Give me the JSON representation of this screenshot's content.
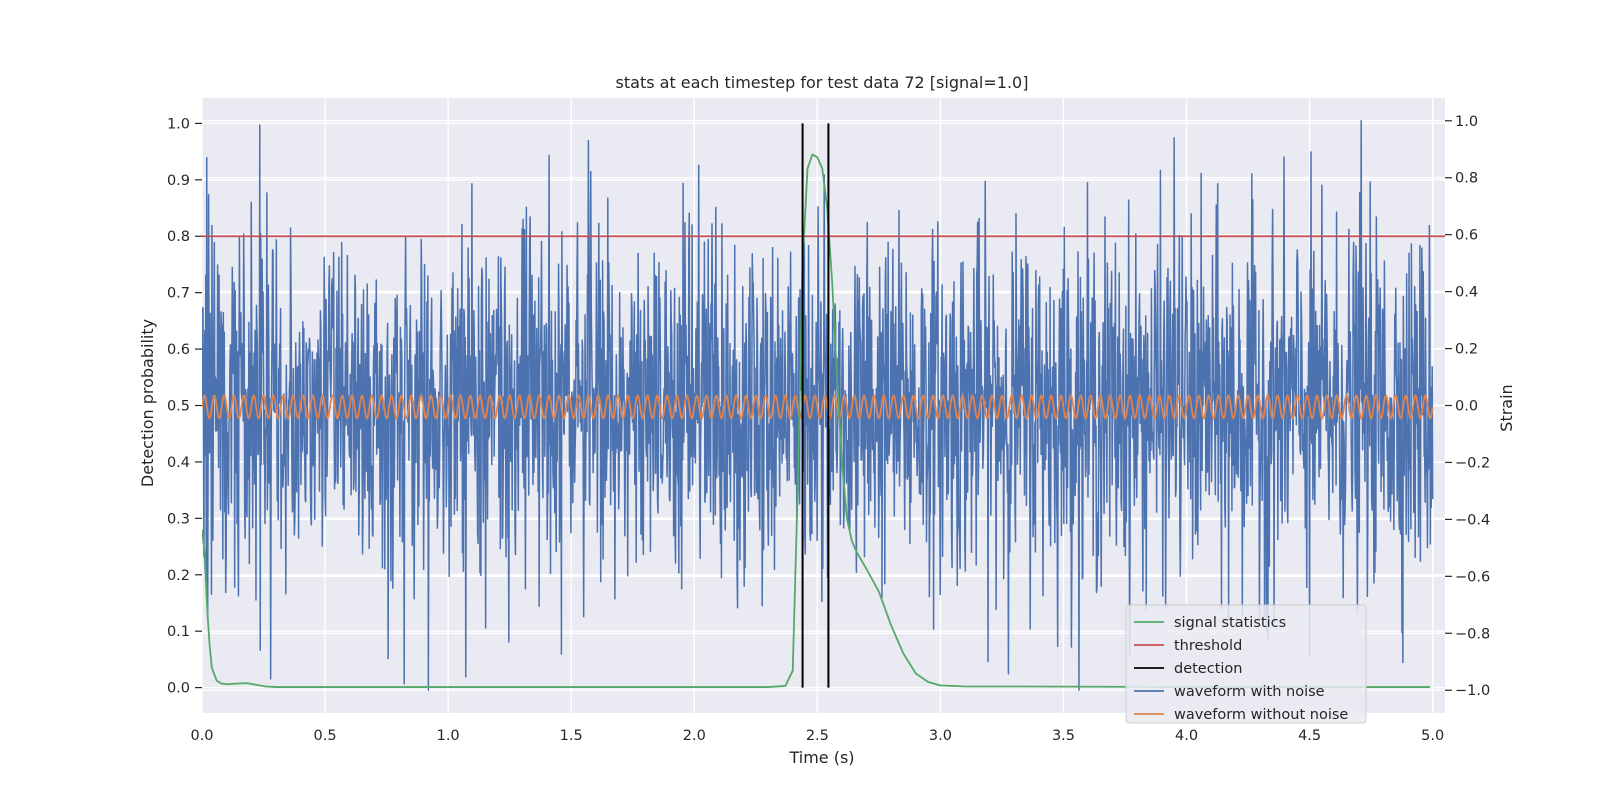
{
  "chart_data": {
    "type": "line",
    "title": "stats at each timestep for test data 72 [signal=1.0]",
    "xlabel": "Time (s)",
    "ylabel": "Detection probability",
    "y2label": "Strain",
    "xlim": [
      0.0,
      5.05
    ],
    "ylim": [
      -0.045,
      1.045
    ],
    "y2lim": [
      -1.08,
      1.08
    ],
    "xticks": [
      "0.0",
      "0.5",
      "1.0",
      "1.5",
      "2.0",
      "2.5",
      "3.0",
      "3.5",
      "4.0",
      "4.5",
      "5.0"
    ],
    "xtick_values": [
      0.0,
      0.5,
      1.0,
      1.5,
      2.0,
      2.5,
      3.0,
      3.5,
      4.0,
      4.5,
      5.0
    ],
    "yticks": [
      "0.0",
      "0.1",
      "0.2",
      "0.3",
      "0.4",
      "0.5",
      "0.6",
      "0.7",
      "0.8",
      "0.9",
      "1.0"
    ],
    "ytick_values": [
      0.0,
      0.1,
      0.2,
      0.3,
      0.4,
      0.5,
      0.6,
      0.7,
      0.8,
      0.9,
      1.0
    ],
    "y2ticks": [
      "−1.0",
      "−0.8",
      "−0.6",
      "−0.4",
      "−0.2",
      "0.0",
      "0.2",
      "0.4",
      "0.6",
      "0.8",
      "1.0"
    ],
    "y2tick_values": [
      -1.0,
      -0.8,
      -0.6,
      -0.4,
      -0.2,
      0.0,
      0.2,
      0.4,
      0.6,
      0.8,
      1.0
    ],
    "grid": true,
    "legend_position": "lower-right",
    "legend": [
      {
        "name": "signal statistics",
        "color": "#55a868"
      },
      {
        "name": "threshold",
        "color": "#c44e52"
      },
      {
        "name": "detection",
        "color": "#000000"
      },
      {
        "name": "waveform with noise",
        "color": "#4c72b0"
      },
      {
        "name": "waveform without noise",
        "color": "#dd8452"
      }
    ],
    "series": [
      {
        "name": "signal statistics",
        "axis": "left",
        "x": [
          0.0,
          0.01,
          0.02,
          0.03,
          0.04,
          0.06,
          0.08,
          0.1,
          0.14,
          0.18,
          0.22,
          0.26,
          0.3,
          1.0,
          2.0,
          2.3,
          2.37,
          2.4,
          2.42,
          2.44,
          2.46,
          2.48,
          2.5,
          2.52,
          2.54,
          2.56,
          2.58,
          2.6,
          2.62,
          2.64,
          2.66,
          2.7,
          2.75,
          2.8,
          2.85,
          2.9,
          2.95,
          3.0,
          3.1,
          3.3,
          4.0,
          4.99
        ],
        "y": [
          0.28,
          0.24,
          0.15,
          0.08,
          0.035,
          0.012,
          0.007,
          0.006,
          0.007,
          0.008,
          0.005,
          0.002,
          0.001,
          0.001,
          0.001,
          0.001,
          0.003,
          0.03,
          0.35,
          0.75,
          0.92,
          0.945,
          0.94,
          0.92,
          0.85,
          0.72,
          0.55,
          0.4,
          0.3,
          0.26,
          0.24,
          0.21,
          0.17,
          0.11,
          0.06,
          0.025,
          0.01,
          0.004,
          0.002,
          0.002,
          0.001,
          0.001
        ]
      },
      {
        "name": "threshold",
        "axis": "left",
        "x": [
          0.0,
          5.05
        ],
        "y": [
          0.8,
          0.8
        ]
      },
      {
        "name": "detection",
        "axis": "left",
        "vlines": [
          2.44,
          2.545
        ],
        "ymin": 0.0,
        "ymax": 1.0
      },
      {
        "name": "waveform with noise",
        "axis": "right",
        "x_range": [
          0.0,
          5.0
        ],
        "amplitude": 0.3,
        "min": -1.0,
        "max": 1.0,
        "peaks": [
          {
            "x": 0.02,
            "y": 0.87
          },
          {
            "x": 0.92,
            "y": -1.0
          },
          {
            "x": 1.57,
            "y": 0.93
          },
          {
            "x": 4.5,
            "y": -0.88
          },
          {
            "x": 4.71,
            "y": 1.0
          },
          {
            "x": 4.33,
            "y": -0.82
          },
          {
            "x": 3.95,
            "y": 0.94
          },
          {
            "x": 4.17,
            "y": -0.75
          }
        ]
      },
      {
        "name": "waveform without noise",
        "axis": "right",
        "type": "sinusoid",
        "amplitude": 0.04,
        "cycles": 125,
        "x_range": [
          0.0,
          5.0
        ],
        "offset": -0.005
      }
    ]
  }
}
